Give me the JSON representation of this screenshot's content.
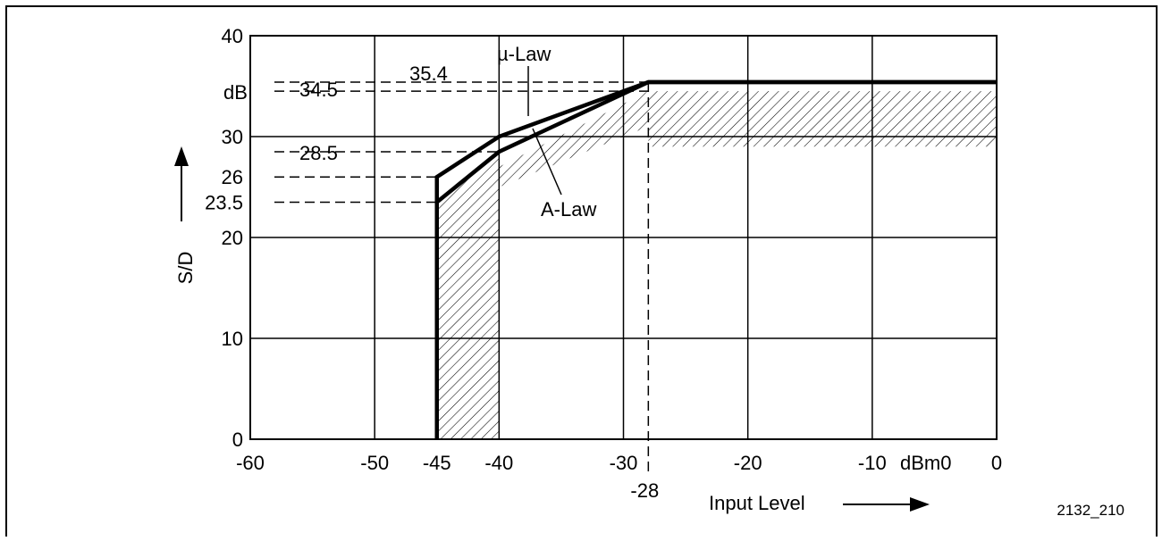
{
  "figure_id": "2132_210",
  "chart_data": {
    "type": "line",
    "xlabel": "Input Level",
    "xunit": "dBm0",
    "ylabel": "S/D",
    "yunit": "dB",
    "xlim": [
      -60,
      0
    ],
    "ylim": [
      0,
      40
    ],
    "x_ticks": [
      {
        "value": -60,
        "label": "-60"
      },
      {
        "value": -50,
        "label": "-50"
      },
      {
        "value": -45,
        "label": "-45"
      },
      {
        "value": -40,
        "label": "-40"
      },
      {
        "value": -30,
        "label": "-30"
      },
      {
        "value": -20,
        "label": "-20"
      },
      {
        "value": -10,
        "label": "-10"
      },
      {
        "value": 0,
        "label": "0"
      }
    ],
    "x_extra_tick": {
      "value": -28,
      "label": "-28"
    },
    "x_gridlines": [
      -60,
      -50,
      -40,
      -30,
      -20,
      -10,
      0
    ],
    "y_ticks": [
      {
        "value": 0,
        "label": "0"
      },
      {
        "value": 10,
        "label": "10"
      },
      {
        "value": 20,
        "label": "20"
      },
      {
        "value": 23.5,
        "label": "23.5"
      },
      {
        "value": 26,
        "label": "26"
      },
      {
        "value": 30,
        "label": "30"
      },
      {
        "value": 40,
        "label": "40"
      }
    ],
    "y_gridlines": [
      0,
      10,
      20,
      30,
      40
    ],
    "series": [
      {
        "name": "µ-Law",
        "x": [
          -45,
          -45,
          -40,
          -28,
          0
        ],
        "y": [
          0,
          26,
          30,
          35.4,
          35.4
        ]
      },
      {
        "name": "A-Law",
        "x": [
          -45,
          -45,
          -40,
          -28,
          0
        ],
        "y": [
          0,
          23.5,
          28.5,
          35.4,
          35.4
        ]
      }
    ],
    "reference_lines": [
      {
        "axis": "y",
        "value": 35.4,
        "label": "35.4"
      },
      {
        "axis": "y",
        "value": 34.5,
        "label": "34.5"
      },
      {
        "axis": "y",
        "value": 28.5,
        "label": "28.5"
      },
      {
        "axis": "y",
        "value": 26
      },
      {
        "axis": "y",
        "value": 23.5
      },
      {
        "axis": "x",
        "value": -28
      }
    ],
    "shaded_region": {
      "description": "hatched tolerance region below the curves",
      "x": [
        -45,
        -45,
        -40,
        -40,
        -35,
        -28,
        -28,
        0,
        0,
        -28,
        -40,
        -40
      ],
      "y": [
        0,
        23.5,
        28.5,
        25,
        27.5,
        31,
        29,
        29,
        34.5,
        34.5,
        27,
        0
      ]
    }
  }
}
